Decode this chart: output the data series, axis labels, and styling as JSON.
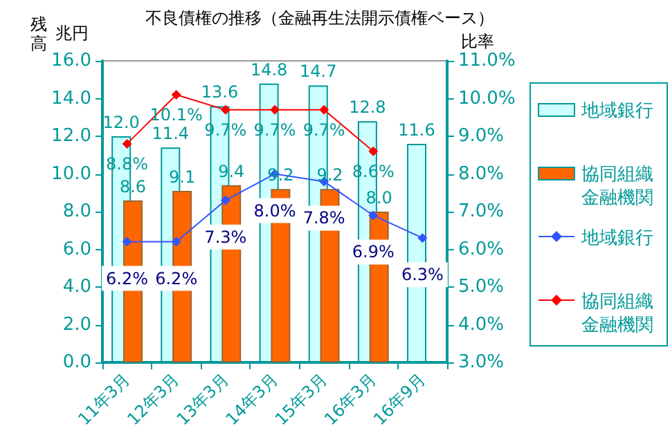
{
  "chart_data": {
    "type": "bar",
    "title": "不良債権の推移（金融再生法開示債権ベース）",
    "ylabel": "残高",
    "y2label": "比率",
    "annotations": [
      "兆円"
    ],
    "categories": [
      "11年3月",
      "12年3月",
      "13年3月",
      "14年3月",
      "15年3月",
      "16年3月",
      "16年9月"
    ],
    "series": [
      {
        "name": "地域銀行",
        "color": "#ccffff",
        "values": [
          12.0,
          11.4,
          13.6,
          14.8,
          14.7,
          12.8,
          11.6
        ],
        "value_labels": [
          "12.0",
          "11.4",
          "13.6",
          "14.8",
          "14.7",
          "12.8",
          "11.6"
        ]
      },
      {
        "name": "協同組織金融機関",
        "color": "#ff6600",
        "values": [
          8.6,
          9.1,
          9.4,
          9.2,
          9.2,
          8.0,
          null
        ],
        "value_labels": [
          "8.6",
          "9.1",
          "9.4",
          "9.2",
          "9.2",
          "8.0",
          null
        ]
      },
      {
        "name": "地域銀行",
        "type": "line",
        "axis": "y2",
        "color": "#3355ff",
        "values": [
          6.2,
          6.2,
          7.3,
          8.0,
          7.8,
          6.9,
          6.3
        ],
        "value_labels": [
          "6.2%",
          "6.2%",
          "7.3%",
          "8.0%",
          "7.8%",
          "6.9%",
          "6.3%"
        ]
      },
      {
        "name": "協同組織金融機関",
        "type": "line",
        "axis": "y2",
        "color": "#ff0000",
        "values": [
          8.8,
          10.1,
          9.7,
          9.7,
          9.7,
          8.6,
          null
        ],
        "value_labels": [
          "8.8%",
          "10.1%",
          "9.7%",
          "9.7%",
          "9.7%",
          "8.6%",
          null
        ]
      }
    ],
    "ylim": [
      0,
      16
    ],
    "yticks": [
      {
        "value": 0,
        "label": "0.0"
      },
      {
        "value": 2,
        "label": "2.0"
      },
      {
        "value": 4,
        "label": "4.0"
      },
      {
        "value": 6,
        "label": "6.0"
      },
      {
        "value": 8,
        "label": "8.0"
      },
      {
        "value": 10,
        "label": "10.0"
      },
      {
        "value": 12,
        "label": "12.0"
      },
      {
        "value": 14,
        "label": "14.0"
      },
      {
        "value": 16,
        "label": "16.0"
      }
    ],
    "y2lim": [
      3,
      11
    ],
    "y2ticks": [
      {
        "value": 3,
        "label": "3.0%"
      },
      {
        "value": 4,
        "label": "4.0%"
      },
      {
        "value": 5,
        "label": "5.0%"
      },
      {
        "value": 6,
        "label": "6.0%"
      },
      {
        "value": 7,
        "label": "7.0%"
      },
      {
        "value": 8,
        "label": "8.0%"
      },
      {
        "value": 9,
        "label": "9.0%"
      },
      {
        "value": 10,
        "label": "10.0%"
      },
      {
        "value": 11,
        "label": "11.0%"
      }
    ],
    "data_labels": true,
    "marker": "diamond",
    "grid": false,
    "legend": "right"
  }
}
